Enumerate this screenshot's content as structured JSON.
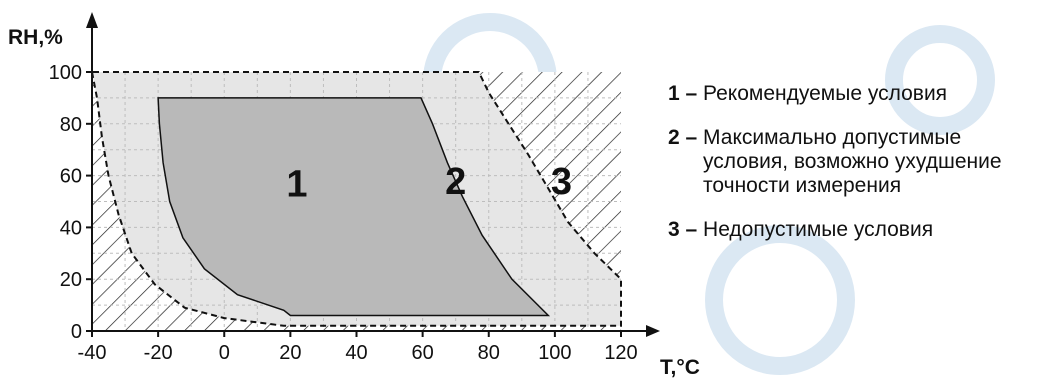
{
  "chart_data": {
    "type": "area",
    "xlabel": "T,°C",
    "ylabel": "RH,%",
    "xlim": [
      -40,
      120
    ],
    "ylim": [
      0,
      100
    ],
    "x_ticks": [
      -40,
      -20,
      0,
      20,
      40,
      60,
      80,
      100,
      120
    ],
    "y_ticks": [
      0,
      20,
      40,
      60,
      80,
      100
    ],
    "grid": true,
    "legend_placement": "right",
    "zones": [
      {
        "label": "1",
        "description": "Рекомендуемые условия",
        "fill": "#b9b9b9",
        "pattern": "solid",
        "boundary": [
          [
            -20,
            90
          ],
          [
            -19.6,
            80
          ],
          [
            -18.5,
            65
          ],
          [
            -16.5,
            50
          ],
          [
            -12.5,
            36
          ],
          [
            -6,
            24
          ],
          [
            4,
            14
          ],
          [
            18,
            8
          ],
          [
            20,
            6
          ],
          [
            98,
            6
          ],
          [
            87,
            20
          ],
          [
            78,
            37
          ],
          [
            72,
            52
          ],
          [
            67.5,
            65
          ],
          [
            63,
            80
          ],
          [
            59.5,
            90
          ]
        ]
      },
      {
        "label": "2",
        "description": "Максимально допустимые условия, возможно ухудшение точности измерения",
        "fill": "#e6e6e6",
        "pattern": "solid",
        "boundary": [
          [
            -40,
            100
          ],
          [
            -38.5,
            90
          ],
          [
            -37,
            75
          ],
          [
            -35,
            60
          ],
          [
            -32,
            45
          ],
          [
            -28,
            30
          ],
          [
            -21,
            18
          ],
          [
            -12,
            9
          ],
          [
            0,
            5
          ],
          [
            18,
            2
          ],
          [
            120,
            2
          ],
          [
            120,
            20
          ],
          [
            112,
            30
          ],
          [
            104,
            42
          ],
          [
            98,
            55
          ],
          [
            92,
            68
          ],
          [
            86,
            80
          ],
          [
            80,
            92
          ],
          [
            77,
            100
          ]
        ]
      },
      {
        "label": "3",
        "description": "Недопустимые условия",
        "fill": "#ffffff",
        "pattern": "hatch"
      }
    ]
  },
  "legend": {
    "items": [
      {
        "num": "1 – ",
        "text": "Рекомендуемые условия"
      },
      {
        "num": "2 – ",
        "text": "Максимально допустимые условия, возможно ухудшение точности измерения"
      },
      {
        "num": "3 – ",
        "text": "Недопустимые условия"
      }
    ]
  },
  "watermark": {
    "color": "#dbe8f3"
  }
}
